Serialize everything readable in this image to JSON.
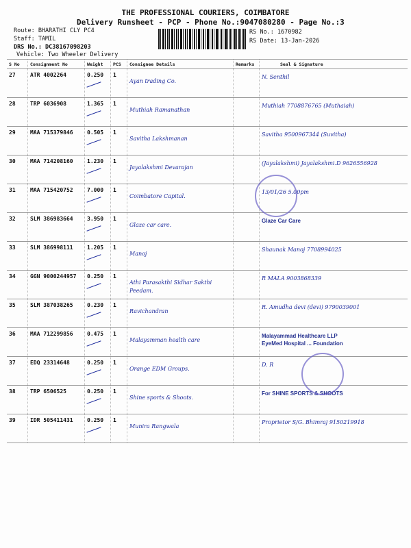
{
  "header": {
    "company": "THE PROFESSIONAL COURIERS, COIMBATORE",
    "subtitle": "Delivery Runsheet - PCP - Phone No.:9047080280 - Page No.:3",
    "route": "Route: BHARATHI CLY PC4",
    "staff": "Staff: TAMIL",
    "drs": "DRS No.: DC38167098203",
    "vehicle": "Vehicle: Two Wheeler Delivery",
    "rs_no": "RS No.: 1670982",
    "rs_date": "RS Date: 13-Jan-2026"
  },
  "columns": [
    "S No",
    "Consignment No",
    "Weight",
    "PCS",
    "Consignee Details",
    "Remarks",
    "Seal & Signature"
  ],
  "rows": [
    {
      "sno": "27",
      "consignment": "ATR 4002264",
      "weight": "0.250",
      "pcs": "1",
      "consignee": "Ayan trading Co.",
      "signature": "N. Senthil"
    },
    {
      "sno": "28",
      "consignment": "TRP 6036908",
      "weight": "1.365",
      "pcs": "1",
      "consignee": "Muthiah Ramanathan",
      "signature": "Muthiah 7708876765 (Muthaiah)"
    },
    {
      "sno": "29",
      "consignment": "MAA 715379846",
      "weight": "0.505",
      "pcs": "1",
      "consignee": "Savitha Lakshmanan",
      "signature": "Savitha 9500967344 (Suvitha)"
    },
    {
      "sno": "30",
      "consignment": "MAA 714208160",
      "weight": "1.230",
      "pcs": "1",
      "consignee": "Jayalakshmi Devarajan",
      "signature": "(Jayalakshmi) Jayalakshmi.D 9626556928"
    },
    {
      "sno": "31",
      "consignment": "MAA 715420752",
      "weight": "7.000",
      "pcs": "1",
      "consignee": "Coimbatore Capital.",
      "signature": "13/01/26 5.00pm"
    },
    {
      "sno": "32",
      "consignment": "SLM 386983664",
      "weight": "3.950",
      "pcs": "1",
      "consignee": "Glaze car care.",
      "signature": "Glaze Car Care"
    },
    {
      "sno": "33",
      "consignment": "SLM 386998111",
      "weight": "1.205",
      "pcs": "1",
      "consignee": "Manoj",
      "signature": "Shaunak Manoj 7708994025"
    },
    {
      "sno": "34",
      "consignment": "GGN 9000244957",
      "weight": "0.250",
      "pcs": "1",
      "consignee": "Athi Parasakthi Sidhar Sakthi Peedam.",
      "signature": "R MALA 9003868339"
    },
    {
      "sno": "35",
      "consignment": "SLM 387038265",
      "weight": "0.230",
      "pcs": "1",
      "consignee": "Ravichandran",
      "signature": "R. Amudha devi (devi) 9790039001"
    },
    {
      "sno": "36",
      "consignment": "MAA 712299856",
      "weight": "0.475",
      "pcs": "1",
      "consignee": "Malayamman health care",
      "signature": "Malayammad Healthcare LLP\nEyeMed Hospital ... Foundation"
    },
    {
      "sno": "37",
      "consignment": "EDQ 23314648",
      "weight": "0.250",
      "pcs": "1",
      "consignee": "Orange EDM Groups.",
      "signature": "D. R"
    },
    {
      "sno": "38",
      "consignment": "TRP 6506525",
      "weight": "0.250",
      "pcs": "1",
      "consignee": "Shine sports & Shoots.",
      "signature": "For SHINE SPORTS & SHOOTS"
    },
    {
      "sno": "39",
      "consignment": "IDR 505411431",
      "weight": "0.250",
      "pcs": "1",
      "consignee": "Munira Rangwala",
      "signature": "Proprietor S/G. Bhimraj 9150219918"
    }
  ],
  "colors": {
    "ink": "#1c2a9c",
    "stamp": "#6b63c6"
  }
}
